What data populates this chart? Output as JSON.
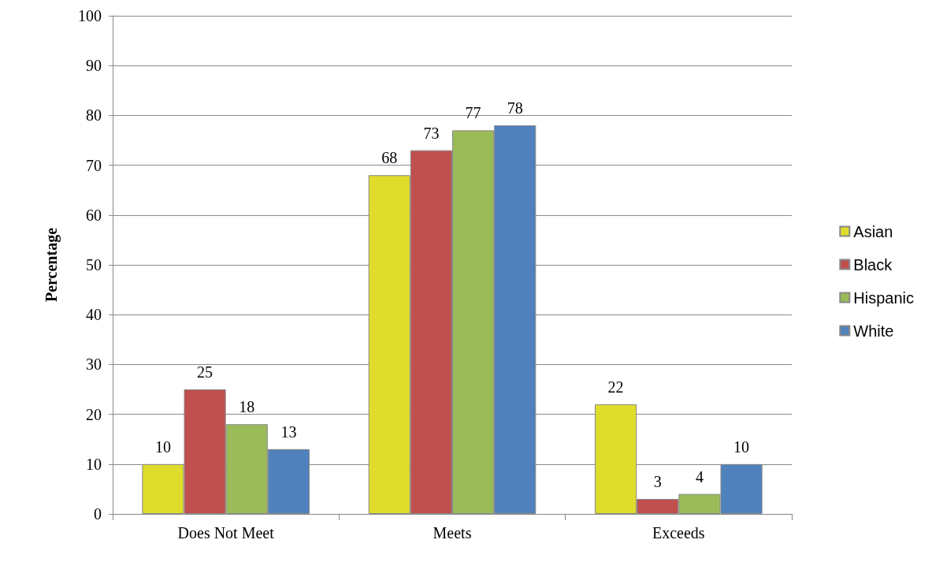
{
  "chart_data": {
    "type": "bar",
    "ylabel": "Percentage",
    "categories": [
      "Does Not Meet",
      "Meets",
      "Exceeds"
    ],
    "series": [
      {
        "name": "Asian",
        "color": "#e0dc2c",
        "values": [
          10,
          68,
          22
        ]
      },
      {
        "name": "Black",
        "color": "#c0504d",
        "values": [
          25,
          73,
          3
        ]
      },
      {
        "name": "Hispanic",
        "color": "#9bbb59",
        "values": [
          18,
          77,
          4
        ]
      },
      {
        "name": "White",
        "color": "#4f81bd",
        "values": [
          13,
          78,
          10
        ]
      }
    ],
    "ylim": [
      0,
      100
    ],
    "yticks": [
      0,
      10,
      20,
      30,
      40,
      50,
      60,
      70,
      80,
      90,
      100
    ],
    "grid": "y",
    "legend": "right",
    "data_labels": true
  }
}
